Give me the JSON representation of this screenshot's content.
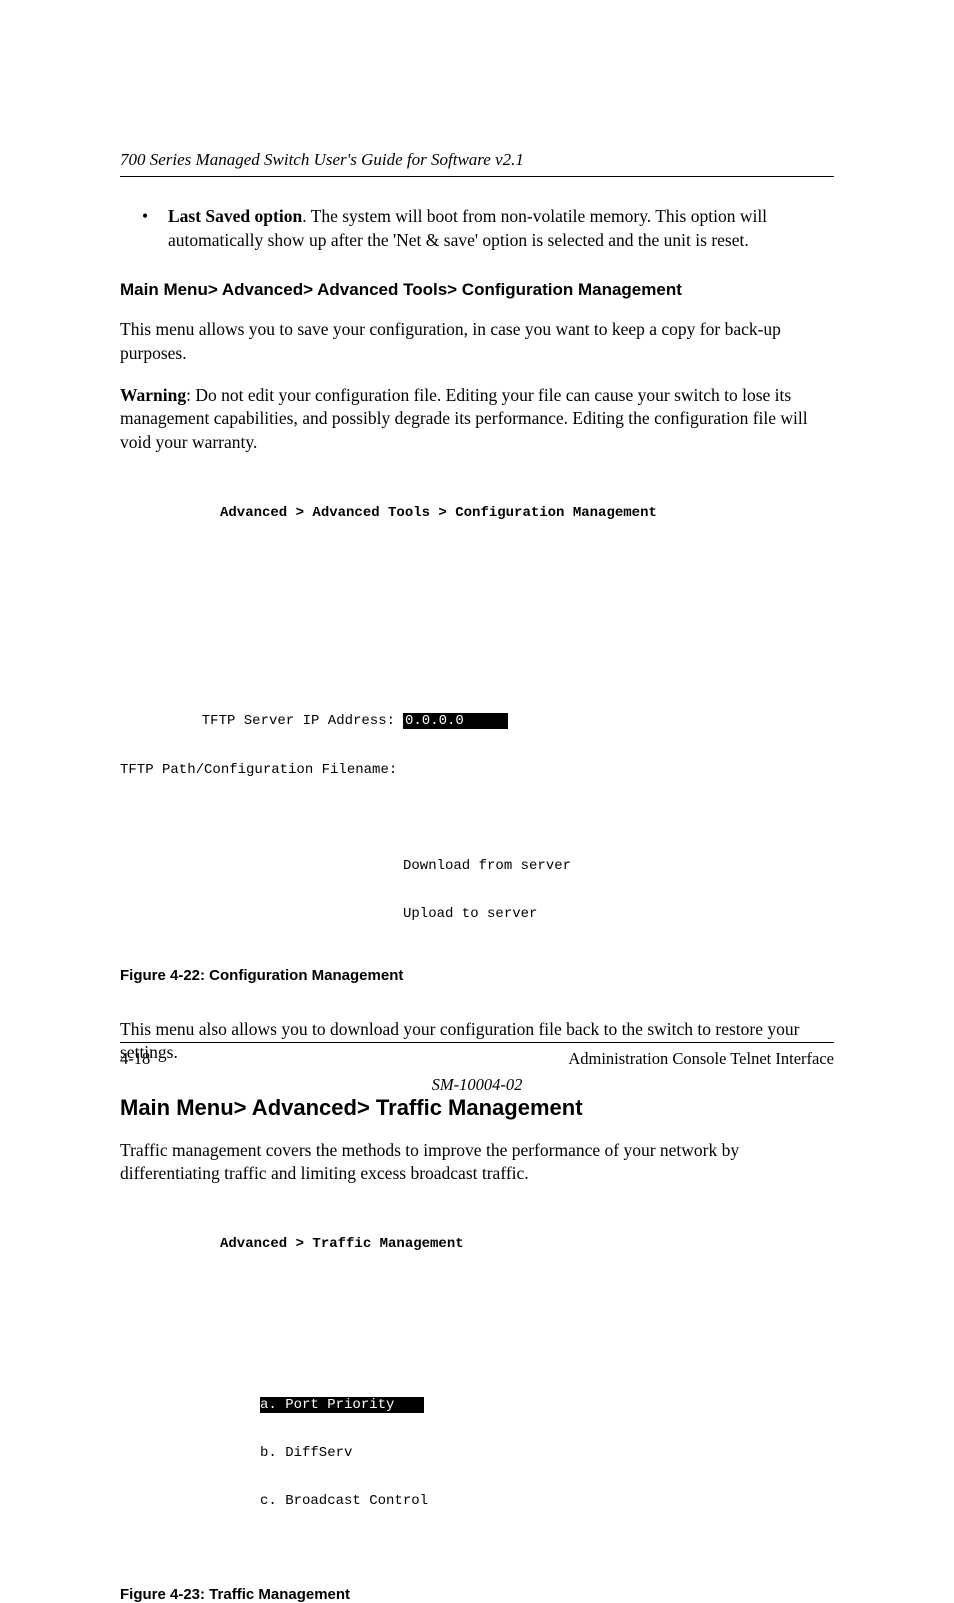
{
  "header": {
    "title": "700 Series Managed Switch User's Guide for Software v2.1"
  },
  "bullet": {
    "bold_lead": "Last Saved option",
    "rest": ". The system will boot from non-volatile memory. This option will automatically show up after the 'Net & save' option is selected and the unit is reset."
  },
  "section1": {
    "heading": "Main Menu> Advanced> Advanced Tools> Configuration Management",
    "p1": "This menu allows you to save your configuration, in case you want to keep a copy for back-up purposes.",
    "warn_label": "Warning",
    "warn_rest": ": Do not edit your configuration file.  Editing your file can cause your switch to lose its management capabilities, and possibly degrade its performance.  Editing the configuration file will void your warranty."
  },
  "terminal1": {
    "breadcrumb": "Advanced > Advanced Tools > Configuration Management",
    "row1_label": "TFTP Server IP Address:",
    "row1_value": "0.0.0.0     ",
    "row2_label": "TFTP Path/Configuration Filename:",
    "action1": "Download from server",
    "action2": "Upload to server"
  },
  "fig1_caption": "Figure 4-22:  Configuration Management",
  "section1_p2": "This menu also allows you to download your configuration file back to the switch to restore your settings.",
  "section2": {
    "heading": "Main Menu> Advanced> Traffic Management",
    "p1": "Traffic management covers the methods to improve the performance of your network by differentiating traffic and limiting excess broadcast traffic."
  },
  "terminal2": {
    "breadcrumb": "Advanced > Traffic Management",
    "item_a": "a. Port Priority   ",
    "item_b": "b. DiffServ",
    "item_c": "c. Broadcast Control"
  },
  "fig2_caption": "Figure 4-23:  Traffic Management",
  "footer": {
    "page_num": "4-18",
    "right": "Administration Console Telnet Interface",
    "doc_id": "SM-10004-02"
  }
}
